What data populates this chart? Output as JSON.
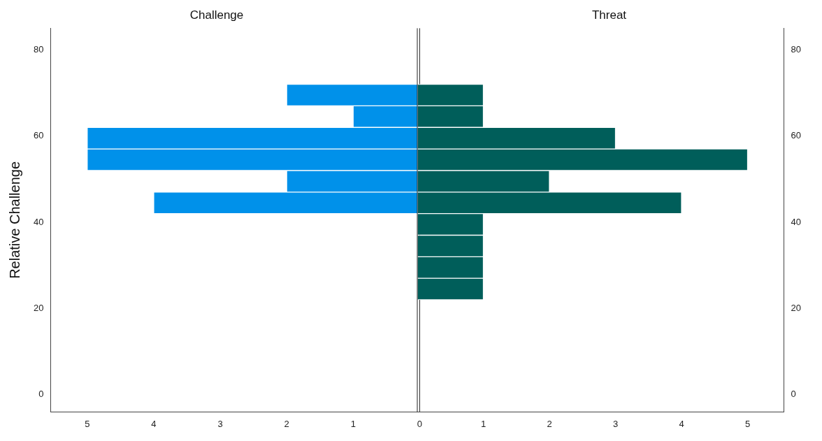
{
  "chart_data": [
    {
      "type": "histogram",
      "title": "Challenge",
      "ylabel": "Relative Challenge",
      "orientation": "horizontal",
      "bins": [
        22,
        27,
        32,
        37,
        42,
        47,
        52,
        57,
        62,
        67,
        72
      ],
      "values": [
        0,
        0,
        0,
        0,
        4,
        2,
        5,
        5,
        1,
        2
      ],
      "color": "#0091ea",
      "xlim": [
        5.55,
        0
      ],
      "xticks": [
        5,
        4,
        3,
        2,
        1,
        0
      ],
      "ylim": [
        -4,
        85
      ],
      "yticks": [
        0,
        20,
        40,
        60,
        80
      ],
      "grid": false
    },
    {
      "type": "histogram",
      "title": "Threat",
      "orientation": "horizontal",
      "bins": [
        22,
        27,
        32,
        37,
        42,
        47,
        52,
        57,
        62,
        67,
        72
      ],
      "values": [
        1,
        1,
        1,
        1,
        4,
        2,
        5,
        3,
        1,
        1
      ],
      "color": "#005e5a",
      "xlim": [
        0,
        5.55
      ],
      "xticks": [
        {
          "value": 0,
          "label": null
        },
        1,
        2,
        3,
        4,
        5
      ],
      "ylim": [
        -4,
        85
      ],
      "yticks": [
        0,
        20,
        40,
        60,
        80
      ],
      "grid": false
    }
  ]
}
